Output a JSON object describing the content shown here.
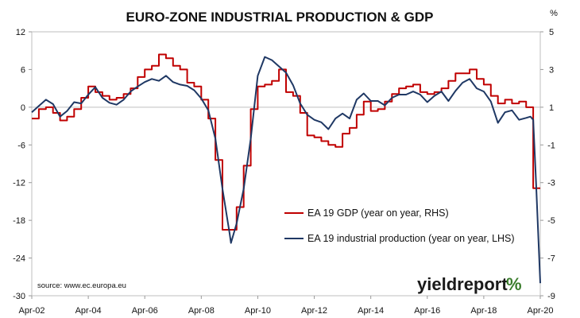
{
  "chart_data": {
    "type": "line",
    "title": "EURO-ZONE INDUSTRIAL PRODUCTION & GDP",
    "right_axis_unit": "%",
    "x_ticks": [
      "Apr-02",
      "Apr-04",
      "Apr-06",
      "Apr-08",
      "Apr-10",
      "Apr-12",
      "Apr-14",
      "Apr-16",
      "Apr-18",
      "Apr-20"
    ],
    "xlim": [
      2002.25,
      2020.25
    ],
    "left_axis": {
      "ticks": [
        "12",
        "6",
        "0",
        "-6",
        "-12",
        "-18",
        "-24",
        "-30"
      ],
      "ylim": [
        -30,
        12
      ]
    },
    "right_axis": {
      "ticks": [
        "5",
        "3",
        "1",
        "-1",
        "-3",
        "-5",
        "-7",
        "-9"
      ],
      "ylim": [
        -9,
        5
      ]
    },
    "grid": false,
    "legend_position": "inside-right",
    "series": [
      {
        "name": "EA 19 GDP (year on year, RHS)",
        "color": "#c00000",
        "axis": "right",
        "points": [
          [
            2002.25,
            0.4
          ],
          [
            2002.5,
            0.9
          ],
          [
            2002.75,
            1.0
          ],
          [
            2003.0,
            0.7
          ],
          [
            2003.25,
            0.3
          ],
          [
            2003.5,
            0.5
          ],
          [
            2003.75,
            0.9
          ],
          [
            2004.0,
            1.5
          ],
          [
            2004.25,
            2.1
          ],
          [
            2004.5,
            1.8
          ],
          [
            2004.75,
            1.6
          ],
          [
            2005.0,
            1.4
          ],
          [
            2005.25,
            1.5
          ],
          [
            2005.5,
            1.7
          ],
          [
            2005.75,
            2.0
          ],
          [
            2006.0,
            2.6
          ],
          [
            2006.25,
            3.0
          ],
          [
            2006.5,
            3.2
          ],
          [
            2006.75,
            3.8
          ],
          [
            2007.0,
            3.6
          ],
          [
            2007.25,
            3.2
          ],
          [
            2007.5,
            3.0
          ],
          [
            2007.75,
            2.3
          ],
          [
            2008.0,
            2.1
          ],
          [
            2008.25,
            1.4
          ],
          [
            2008.5,
            0.4
          ],
          [
            2008.75,
            -1.8
          ],
          [
            2009.0,
            -5.5
          ],
          [
            2009.25,
            -5.5
          ],
          [
            2009.5,
            -4.3
          ],
          [
            2009.75,
            -2.1
          ],
          [
            2010.0,
            0.9
          ],
          [
            2010.25,
            2.1
          ],
          [
            2010.5,
            2.2
          ],
          [
            2010.75,
            2.4
          ],
          [
            2011.0,
            3.0
          ],
          [
            2011.25,
            1.8
          ],
          [
            2011.5,
            1.6
          ],
          [
            2011.75,
            0.7
          ],
          [
            2012.0,
            -0.5
          ],
          [
            2012.25,
            -0.6
          ],
          [
            2012.5,
            -0.8
          ],
          [
            2012.75,
            -1.0
          ],
          [
            2013.0,
            -1.1
          ],
          [
            2013.25,
            -0.4
          ],
          [
            2013.5,
            -0.1
          ],
          [
            2013.75,
            0.6
          ],
          [
            2014.0,
            1.3
          ],
          [
            2014.25,
            0.8
          ],
          [
            2014.5,
            0.9
          ],
          [
            2014.75,
            1.3
          ],
          [
            2015.0,
            1.7
          ],
          [
            2015.25,
            2.0
          ],
          [
            2015.5,
            2.1
          ],
          [
            2015.75,
            2.2
          ],
          [
            2016.0,
            1.8
          ],
          [
            2016.25,
            1.7
          ],
          [
            2016.5,
            1.8
          ],
          [
            2016.75,
            2.0
          ],
          [
            2017.0,
            2.4
          ],
          [
            2017.25,
            2.8
          ],
          [
            2017.5,
            2.8
          ],
          [
            2017.75,
            3.0
          ],
          [
            2018.0,
            2.5
          ],
          [
            2018.25,
            2.2
          ],
          [
            2018.5,
            1.6
          ],
          [
            2018.75,
            1.2
          ],
          [
            2019.0,
            1.4
          ],
          [
            2019.25,
            1.2
          ],
          [
            2019.5,
            1.3
          ],
          [
            2019.75,
            1.0
          ],
          [
            2020.0,
            -3.3
          ],
          [
            2020.25,
            -3.3
          ]
        ]
      },
      {
        "name": "EA 19 industrial production (year on year, LHS)",
        "color": "#1f3864",
        "axis": "left",
        "points": [
          [
            2002.25,
            -0.8
          ],
          [
            2002.5,
            0.2
          ],
          [
            2002.75,
            1.2
          ],
          [
            2003.0,
            0.5
          ],
          [
            2003.25,
            -1.5
          ],
          [
            2003.5,
            -0.6
          ],
          [
            2003.75,
            0.8
          ],
          [
            2004.0,
            0.6
          ],
          [
            2004.25,
            2.0
          ],
          [
            2004.5,
            3.2
          ],
          [
            2004.75,
            1.5
          ],
          [
            2005.0,
            0.7
          ],
          [
            2005.25,
            0.4
          ],
          [
            2005.5,
            1.2
          ],
          [
            2005.75,
            2.5
          ],
          [
            2006.0,
            3.3
          ],
          [
            2006.25,
            4.0
          ],
          [
            2006.5,
            4.5
          ],
          [
            2006.75,
            4.2
          ],
          [
            2007.0,
            5.0
          ],
          [
            2007.25,
            4.0
          ],
          [
            2007.5,
            3.6
          ],
          [
            2007.75,
            3.4
          ],
          [
            2008.0,
            2.7
          ],
          [
            2008.25,
            1.4
          ],
          [
            2008.5,
            -0.5
          ],
          [
            2008.75,
            -5.0
          ],
          [
            2009.0,
            -13.0
          ],
          [
            2009.25,
            -20.0
          ],
          [
            2009.3,
            -21.6
          ],
          [
            2009.5,
            -18.5
          ],
          [
            2009.75,
            -13.0
          ],
          [
            2010.0,
            -5.0
          ],
          [
            2010.25,
            5.0
          ],
          [
            2010.5,
            8.0
          ],
          [
            2010.75,
            7.5
          ],
          [
            2011.0,
            6.5
          ],
          [
            2011.25,
            5.5
          ],
          [
            2011.5,
            3.5
          ],
          [
            2011.75,
            0.6
          ],
          [
            2012.0,
            -1.2
          ],
          [
            2012.25,
            -2.0
          ],
          [
            2012.5,
            -2.4
          ],
          [
            2012.75,
            -3.5
          ],
          [
            2013.0,
            -1.8
          ],
          [
            2013.25,
            -1.0
          ],
          [
            2013.5,
            -1.8
          ],
          [
            2013.75,
            1.2
          ],
          [
            2014.0,
            2.2
          ],
          [
            2014.25,
            1.0
          ],
          [
            2014.5,
            1.0
          ],
          [
            2014.75,
            0.3
          ],
          [
            2015.0,
            1.5
          ],
          [
            2015.25,
            2.0
          ],
          [
            2015.5,
            2.0
          ],
          [
            2015.75,
            2.5
          ],
          [
            2016.0,
            2.0
          ],
          [
            2016.25,
            0.8
          ],
          [
            2016.5,
            1.8
          ],
          [
            2016.75,
            2.5
          ],
          [
            2017.0,
            1.0
          ],
          [
            2017.25,
            2.6
          ],
          [
            2017.5,
            3.9
          ],
          [
            2017.75,
            4.5
          ],
          [
            2018.0,
            3.0
          ],
          [
            2018.25,
            2.5
          ],
          [
            2018.5,
            0.9
          ],
          [
            2018.75,
            -2.5
          ],
          [
            2019.0,
            -0.8
          ],
          [
            2019.25,
            -0.5
          ],
          [
            2019.5,
            -2.0
          ],
          [
            2019.75,
            -1.7
          ],
          [
            2019.9,
            -1.5
          ],
          [
            2020.0,
            -2.0
          ],
          [
            2020.1,
            -12.0
          ],
          [
            2020.25,
            -28.0
          ]
        ]
      }
    ],
    "source": "source: www.ec.europa.eu",
    "logo": {
      "main": "yieldreport",
      "symbol": "%"
    }
  }
}
